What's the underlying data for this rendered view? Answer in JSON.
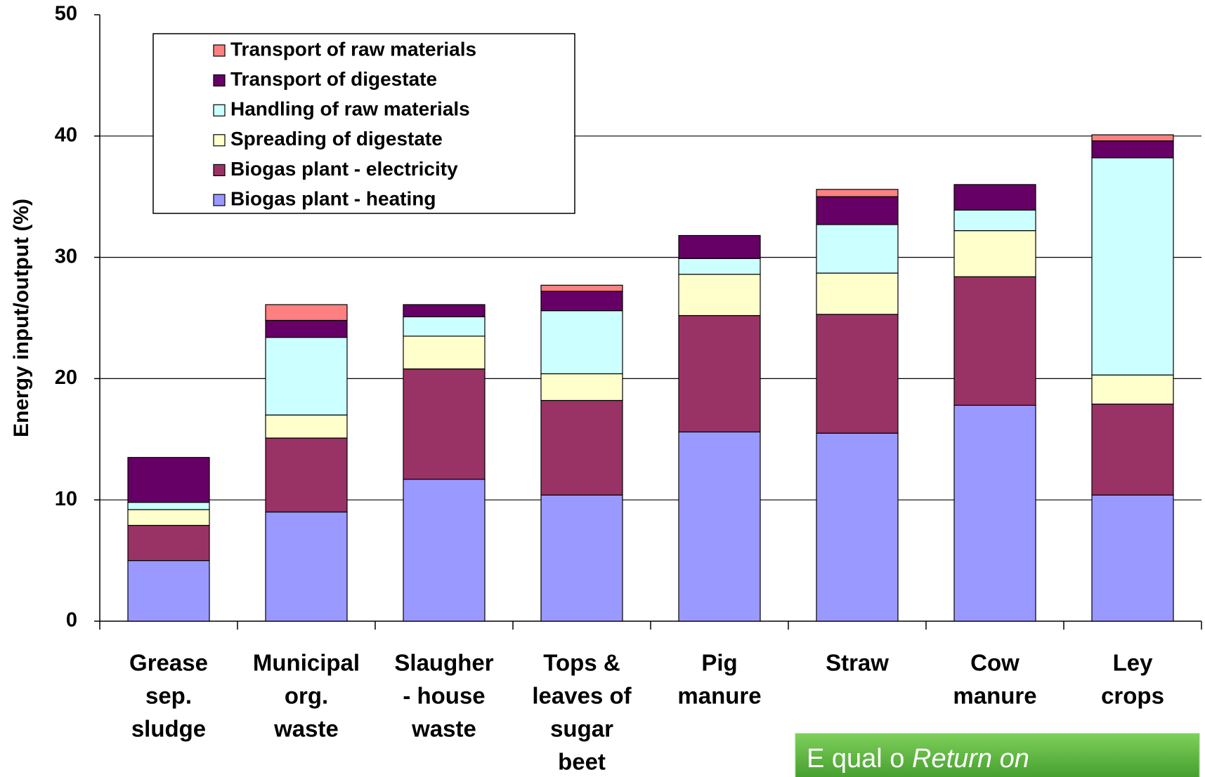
{
  "chart_data": {
    "type": "stacked_bar",
    "y_label": "Energy input/output (%)",
    "categories": [
      [
        "Grease",
        "sep.",
        "sludge"
      ],
      [
        "Municipal",
        "org.",
        "waste"
      ],
      [
        "Slaugher",
        "- house",
        "waste"
      ],
      [
        "Tops &",
        "leaves of",
        "sugar",
        "beet"
      ],
      [
        "Pig",
        "manure"
      ],
      [
        "Straw"
      ],
      [
        "Cow",
        "manure"
      ],
      [
        "Ley",
        "crops"
      ]
    ],
    "series": [
      {
        "name": "Biogas plant - heating",
        "color": "#9999ff",
        "values": [
          5.0,
          9.0,
          11.7,
          10.4,
          15.6,
          15.5,
          17.8,
          10.4
        ]
      },
      {
        "name": "Biogas plant - electricity",
        "color": "#993366",
        "values": [
          2.9,
          6.1,
          9.1,
          7.8,
          9.6,
          9.8,
          10.6,
          7.5
        ]
      },
      {
        "name": "Spreading of digestate",
        "color": "#ffffcc",
        "values": [
          1.3,
          1.9,
          2.7,
          2.2,
          3.4,
          3.4,
          3.8,
          2.4
        ]
      },
      {
        "name": "Handling of raw materials",
        "color": "#ccffff",
        "values": [
          0.6,
          6.4,
          1.6,
          5.2,
          1.3,
          4.0,
          1.7,
          17.9
        ]
      },
      {
        "name": "Transport of digestate",
        "color": "#660066",
        "values": [
          3.7,
          1.4,
          1.0,
          1.6,
          1.9,
          2.3,
          2.1,
          1.4
        ]
      },
      {
        "name": "Transport of raw materials",
        "color": "#ff8080",
        "values": [
          0,
          1.3,
          0,
          0.5,
          0,
          0.6,
          0,
          0.5
        ]
      }
    ],
    "ylim": [
      0,
      50
    ],
    "yticks": [
      0,
      10,
      20,
      30,
      40,
      50
    ],
    "grid": true,
    "legend": "upper left",
    "annotation": {
      "parts": [
        "E qual o ",
        "Return on"
      ]
    }
  }
}
